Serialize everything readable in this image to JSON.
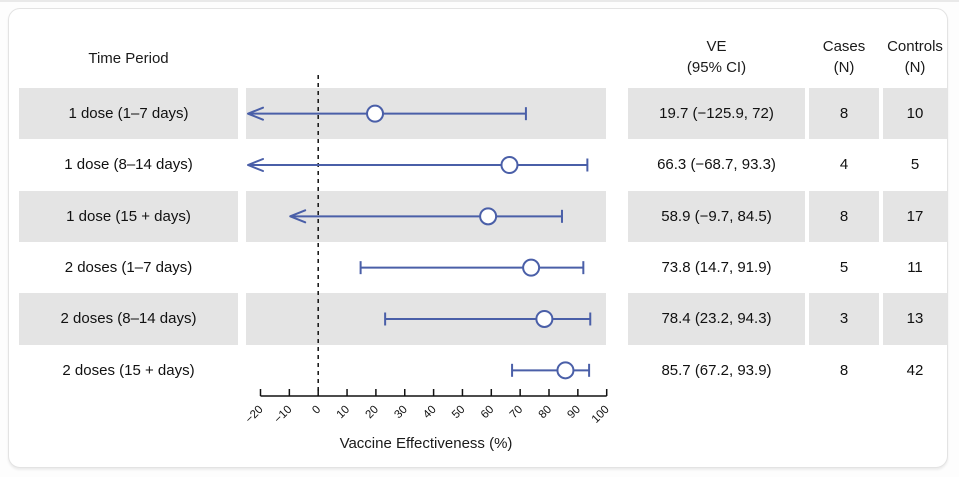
{
  "table": {
    "headers": {
      "time_period": "Time Period",
      "ve_line1": "VE",
      "ve_line2": "(95% CI)",
      "cases_line1": "Cases",
      "cases_line2": "(N)",
      "controls_line1": "Controls",
      "controls_line2": "(N)"
    },
    "rows": [
      {
        "label": "1 dose (1–7 days)",
        "ve_ci": "19.7 (−125.9, 72)",
        "cases": "8",
        "controls": "10"
      },
      {
        "label": "1 dose (8–14 days)",
        "ve_ci": "66.3 (−68.7, 93.3)",
        "cases": "4",
        "controls": "5"
      },
      {
        "label": "1 dose (15 + days)",
        "ve_ci": "58.9 (−9.7, 84.5)",
        "cases": "8",
        "controls": "17"
      },
      {
        "label": "2 doses (1–7 days)",
        "ve_ci": "73.8 (14.7, 91.9)",
        "cases": "5",
        "controls": "11"
      },
      {
        "label": "2 doses (8–14 days)",
        "ve_ci": "78.4 (23.2, 94.3)",
        "cases": "3",
        "controls": "13"
      },
      {
        "label": "2 doses (15 + days)",
        "ve_ci": "85.7 (67.2, 93.9)",
        "cases": "8",
        "controls": "42"
      }
    ]
  },
  "chart_data": {
    "type": "forest",
    "xlabel": "Vaccine Effectiveness (%)",
    "xlim": [
      -20,
      100
    ],
    "xticks": [
      -20,
      -10,
      0,
      10,
      20,
      30,
      40,
      50,
      60,
      70,
      80,
      90,
      100
    ],
    "reference_line": 0,
    "marker": "open-circle",
    "series": [
      {
        "label": "1 dose (1–7 days)",
        "estimate": 19.7,
        "ci_low": -125.9,
        "ci_high": 72,
        "ci_low_off_scale": true,
        "left_arrow": true
      },
      {
        "label": "1 dose (8–14 days)",
        "estimate": 66.3,
        "ci_low": -68.7,
        "ci_high": 93.3,
        "ci_low_off_scale": true,
        "left_arrow": true
      },
      {
        "label": "1 dose (15 + days)",
        "estimate": 58.9,
        "ci_low": -9.7,
        "ci_high": 84.5,
        "ci_low_off_scale": false,
        "left_arrow": true
      },
      {
        "label": "2 doses (1–7 days)",
        "estimate": 73.8,
        "ci_low": 14.7,
        "ci_high": 91.9,
        "ci_low_off_scale": false,
        "left_arrow": false
      },
      {
        "label": "2 doses (8–14 days)",
        "estimate": 78.4,
        "ci_low": 23.2,
        "ci_high": 94.3,
        "ci_low_off_scale": false,
        "left_arrow": false
      },
      {
        "label": "2 doses (15 + days)",
        "estimate": 85.7,
        "ci_low": 67.2,
        "ci_high": 93.9,
        "ci_low_off_scale": false,
        "left_arrow": false
      }
    ]
  },
  "colors": {
    "ci_blue": "#4a5fa8",
    "band_gray": "#e4e4e4",
    "axis_black": "#111111",
    "text": "#1a1a1a"
  }
}
